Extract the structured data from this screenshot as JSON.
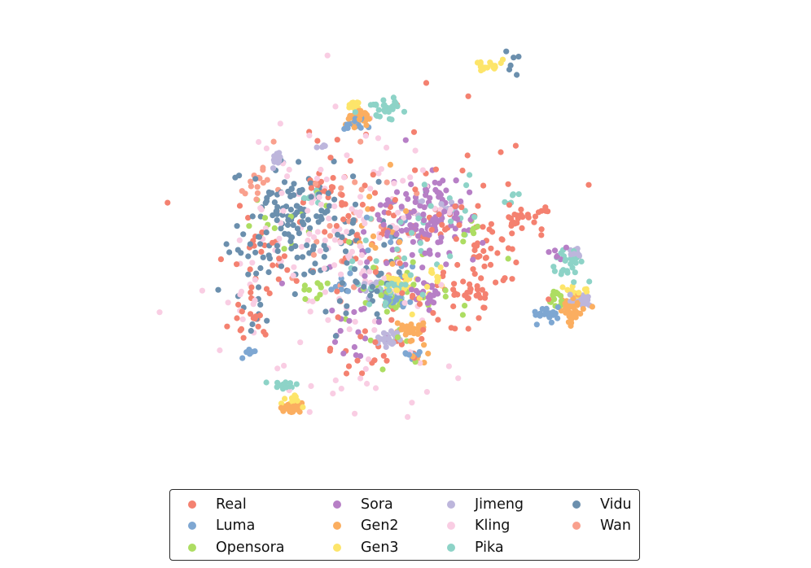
{
  "chart_data": {
    "type": "scatter",
    "title": "",
    "xlabel": "",
    "ylabel": "",
    "axes_visible": false,
    "grid": false,
    "legend": {
      "placement": "bottom-center",
      "columns": 4
    },
    "xlim": [
      -100,
      100
    ],
    "ylim": [
      -100,
      100
    ],
    "series": [
      {
        "name": "Real",
        "color": "#F48170",
        "clusters": [
          [
            -45,
            68,
            4,
            5,
            16
          ],
          [
            -10,
            45,
            35,
            28,
            110
          ],
          [
            68,
            50,
            7,
            4,
            26
          ],
          [
            50,
            28,
            8,
            14,
            32
          ],
          [
            36,
            8,
            6,
            4,
            26
          ],
          [
            -78,
            22,
            9,
            12,
            22
          ],
          [
            -84,
            -8,
            8,
            8,
            18
          ],
          [
            -25,
            -28,
            10,
            8,
            14
          ],
          [
            12,
            -12,
            12,
            10,
            14
          ]
        ]
      },
      {
        "name": "Luma",
        "color": "#7EA7D2",
        "clusters": [
          [
            -28,
            100,
            3,
            2,
            20
          ],
          [
            -4,
            2,
            3,
            2,
            26
          ],
          [
            80,
            -6,
            4,
            3,
            20
          ],
          [
            2,
            -28,
            4,
            2,
            10
          ],
          [
            -34,
            10,
            5,
            4,
            8
          ],
          [
            -87,
            -26,
            2,
            1.5,
            6
          ],
          [
            -3,
            38,
            10,
            12,
            10
          ]
        ]
      },
      {
        "name": "Opensora",
        "color": "#ADDD62",
        "clusters": [
          [
            -7,
            4,
            3,
            2,
            14
          ],
          [
            84,
            4,
            3,
            2,
            12
          ],
          [
            -74,
            50,
            10,
            12,
            14
          ],
          [
            -50,
            8,
            4,
            3,
            10
          ],
          [
            36,
            40,
            3,
            3,
            8
          ],
          [
            0,
            5,
            20,
            20,
            30
          ]
        ]
      },
      {
        "name": "Sora",
        "color": "#B77FC6",
        "clusters": [
          [
            18,
            50,
            12,
            10,
            90
          ],
          [
            3,
            45,
            10,
            12,
            24
          ],
          [
            13,
            5,
            4,
            4,
            20
          ],
          [
            -3,
            24,
            20,
            14,
            28
          ],
          [
            -28,
            -12,
            8,
            10,
            18
          ],
          [
            85,
            28,
            2,
            2,
            6
          ]
        ]
      },
      {
        "name": "Gen2",
        "color": "#FBAE60",
        "clusters": [
          [
            -26,
            103,
            3,
            3,
            32
          ],
          [
            93,
            -5,
            3,
            3,
            34
          ],
          [
            -63,
            -58,
            3,
            1.5,
            34
          ],
          [
            2,
            -15,
            4,
            3,
            28
          ],
          [
            96,
            0,
            3,
            2,
            8
          ],
          [
            -15,
            40,
            10,
            15,
            14
          ],
          [
            10,
            -30,
            4,
            3,
            6
          ]
        ]
      },
      {
        "name": "Gen3",
        "color": "#FDE56A",
        "clusters": [
          [
            46,
            133,
            3,
            2,
            18
          ],
          [
            -28,
            111,
            2,
            1.5,
            16
          ],
          [
            -4,
            11,
            3,
            3,
            14
          ],
          [
            95,
            8,
            3,
            2,
            16
          ],
          [
            -62,
            -53,
            3,
            2,
            12
          ],
          [
            17,
            16,
            4,
            3,
            8
          ],
          [
            5,
            8,
            10,
            6,
            12
          ]
        ]
      },
      {
        "name": "Jimeng",
        "color": "#BDB6DC",
        "clusters": [
          [
            -72,
            81,
            2,
            2,
            16
          ],
          [
            99,
            2,
            3,
            2,
            20
          ],
          [
            -7,
            -19,
            4,
            2,
            30
          ],
          [
            96,
            29,
            2,
            1.5,
            12
          ],
          [
            16,
            55,
            10,
            4,
            12
          ],
          [
            -16,
            8,
            4,
            3,
            10
          ],
          [
            -45,
            88,
            2,
            1,
            5
          ]
        ]
      },
      {
        "name": "Kling",
        "color": "#F9CDE3",
        "clusters": [
          [
            -33,
            45,
            30,
            30,
            130
          ],
          [
            -60,
            -44,
            10,
            8,
            8
          ],
          [
            0,
            -40,
            20,
            10,
            12
          ],
          [
            -85,
            10,
            10,
            20,
            18
          ]
        ]
      },
      {
        "name": "Pika",
        "color": "#8DD3C7",
        "clusters": [
          [
            -11,
            110,
            4,
            3,
            30
          ],
          [
            90,
            22,
            5,
            4,
            26
          ],
          [
            -5,
            8,
            8,
            5,
            26
          ],
          [
            -66,
            -46,
            4,
            2,
            14
          ],
          [
            22,
            45,
            12,
            14,
            18
          ],
          [
            0,
            30,
            18,
            16,
            12
          ],
          [
            60,
            58,
            3,
            3,
            6
          ],
          [
            -47,
            60,
            5,
            5,
            6
          ]
        ]
      },
      {
        "name": "Vidu",
        "color": "#6B8FAD",
        "clusters": [
          [
            -62,
            55,
            12,
            10,
            80
          ],
          [
            -40,
            30,
            20,
            22,
            60
          ],
          [
            -25,
            10,
            15,
            12,
            20
          ],
          [
            -85,
            28,
            8,
            10,
            20
          ],
          [
            60,
            135,
            4,
            4,
            6
          ],
          [
            -85,
            -5,
            6,
            8,
            10
          ]
        ]
      },
      {
        "name": "Wan",
        "color": "#F9A08D",
        "clusters": [
          [
            -82,
            68,
            4,
            4,
            14
          ],
          [
            -25,
            50,
            20,
            20,
            30
          ]
        ]
      }
    ]
  }
}
